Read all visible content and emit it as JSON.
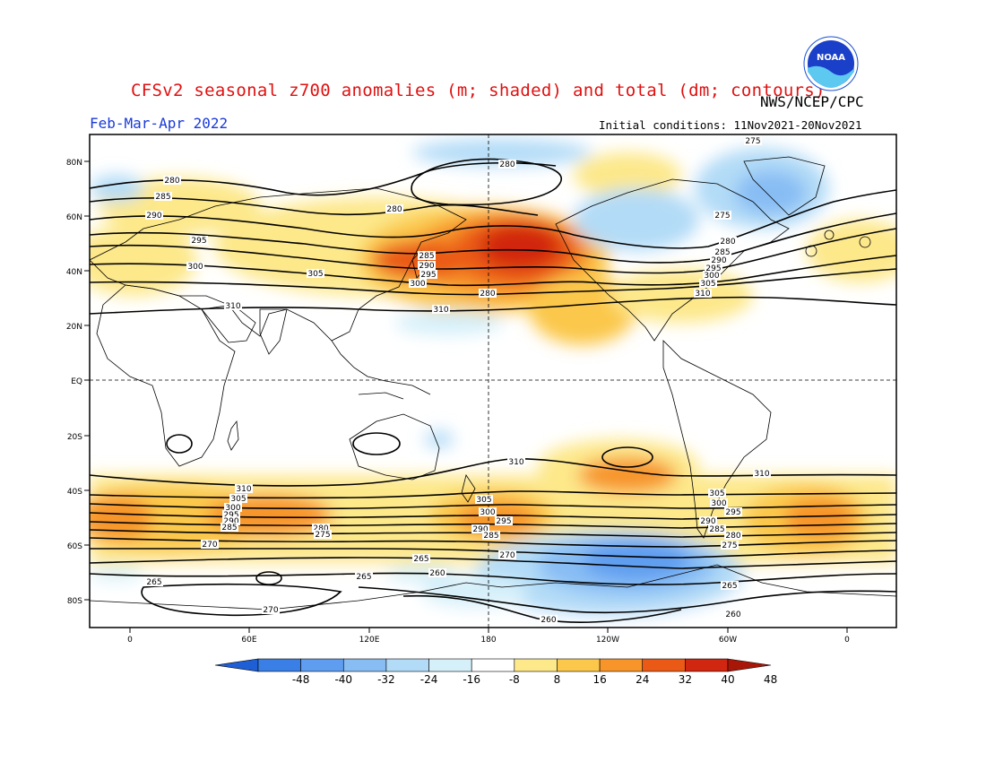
{
  "header": {
    "title": "CFSv2 seasonal z700 anomalies (m; shaded) and total (dm; contours)",
    "agency": "NWS/NCEP/CPC",
    "season": "Feb-Mar-Apr 2022",
    "initial_conditions": "Initial conditions: 11Nov2021-20Nov2021",
    "logo_text": "NOAA"
  },
  "map": {
    "lat_labels": [
      "80N",
      "60N",
      "40N",
      "20N",
      "EQ",
      "20S",
      "40S",
      "60S",
      "80S"
    ],
    "lon_labels": [
      "0",
      "60E",
      "120E",
      "180",
      "120W",
      "60W",
      "0"
    ],
    "contour_labels": {
      "north": [
        "275",
        "280",
        "280",
        "280",
        "285",
        "290",
        "295",
        "300",
        "305",
        "310",
        "310",
        "275",
        "280",
        "285",
        "290",
        "295",
        "300",
        "305",
        "310",
        "285",
        "290",
        "295",
        "300",
        "280"
      ],
      "south": [
        "310",
        "305",
        "300",
        "295",
        "290",
        "285",
        "280",
        "275",
        "270",
        "265",
        "260",
        "265",
        "265",
        "260",
        "270",
        "260",
        "310",
        "305",
        "300",
        "295",
        "290",
        "285",
        "280",
        "275",
        "270",
        "265",
        "310",
        "305",
        "300",
        "295",
        "290",
        "285"
      ]
    }
  },
  "colorbar": {
    "ticks": [
      "-48",
      "-40",
      "-32",
      "-24",
      "-16",
      "-8",
      "8",
      "16",
      "24",
      "32",
      "40",
      "48"
    ],
    "colors": [
      "#1f5fd6",
      "#3a7fe6",
      "#5e9df0",
      "#88bdf4",
      "#b2dbf7",
      "#d6f0fa",
      "#ffffff",
      "#fde88a",
      "#fbc84c",
      "#f7952a",
      "#ea5a16",
      "#d1260f",
      "#a81608"
    ]
  }
}
